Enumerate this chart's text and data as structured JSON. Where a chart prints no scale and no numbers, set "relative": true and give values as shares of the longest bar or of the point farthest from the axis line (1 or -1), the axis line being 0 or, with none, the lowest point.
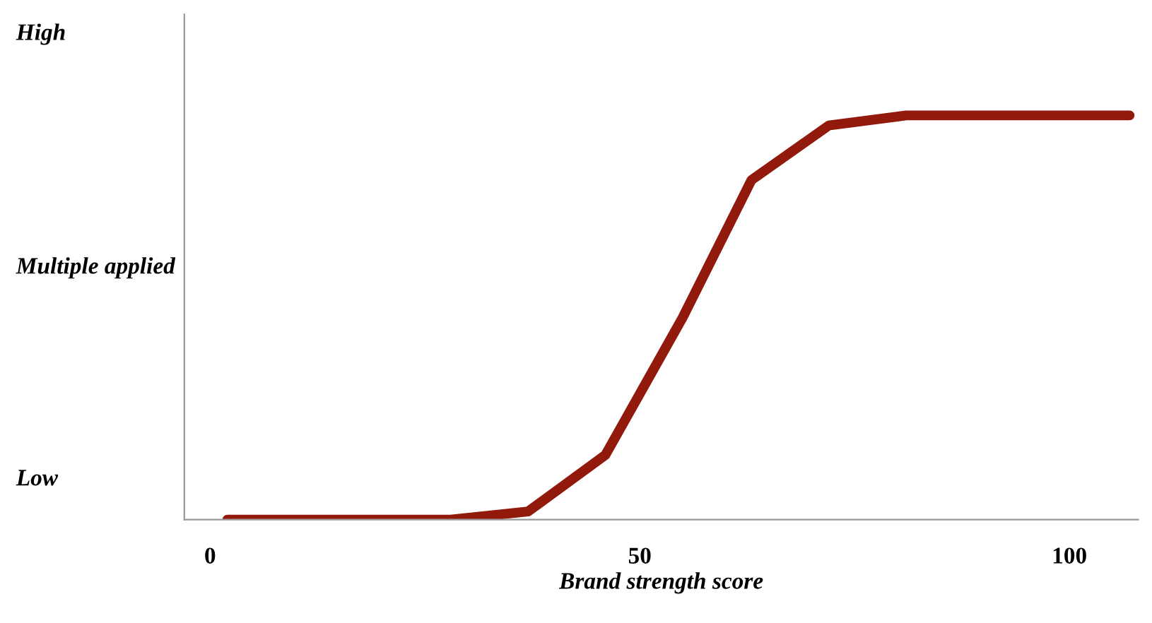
{
  "chart_data": {
    "type": "line",
    "relative": true,
    "xlabel": "Brand strength score",
    "ylabel": "Multiple applied",
    "annotations": [
      "High",
      "Low"
    ],
    "x": [
      2,
      11,
      20,
      28,
      37,
      46,
      55,
      63,
      72,
      81,
      90,
      98,
      107
    ],
    "series": [
      {
        "color": "#921a0c",
        "values": [
          0,
          0,
          0,
          0,
          0.02,
          0.16,
          0.5,
          0.84,
          0.975,
          1,
          1,
          1,
          1
        ]
      }
    ],
    "xlim": [
      -3,
      108
    ],
    "xticks": [
      0,
      50,
      100
    ],
    "marker": "none",
    "line_style": "solid"
  }
}
